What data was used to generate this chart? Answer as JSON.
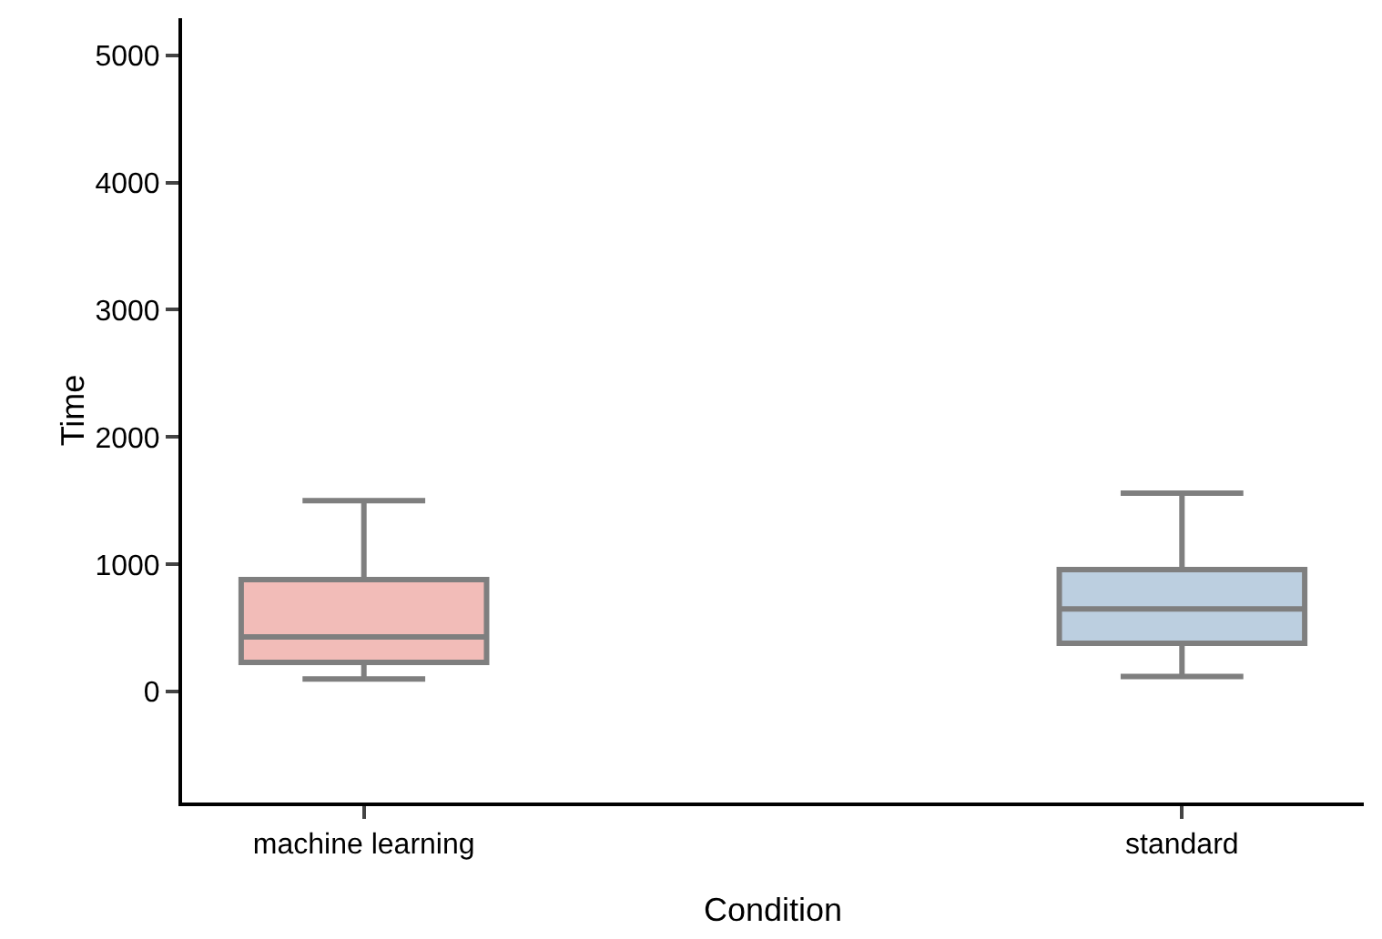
{
  "chart_data": {
    "type": "box",
    "xlabel": "Condition",
    "ylabel": "Time",
    "categories": [
      "machine learning",
      "standard"
    ],
    "colors": [
      "#f2bcb8",
      "#bccfe0"
    ],
    "boxes": [
      {
        "low": 100,
        "q1": 230,
        "median": 430,
        "q3": 880,
        "high": 1500
      },
      {
        "low": 120,
        "q1": 380,
        "median": 650,
        "q3": 960,
        "high": 1560
      }
    ],
    "ylim": [
      -870,
      5290
    ],
    "yticks": [
      0,
      1000,
      2000,
      3000,
      4000,
      5000
    ],
    "grid": false,
    "legend": false
  }
}
